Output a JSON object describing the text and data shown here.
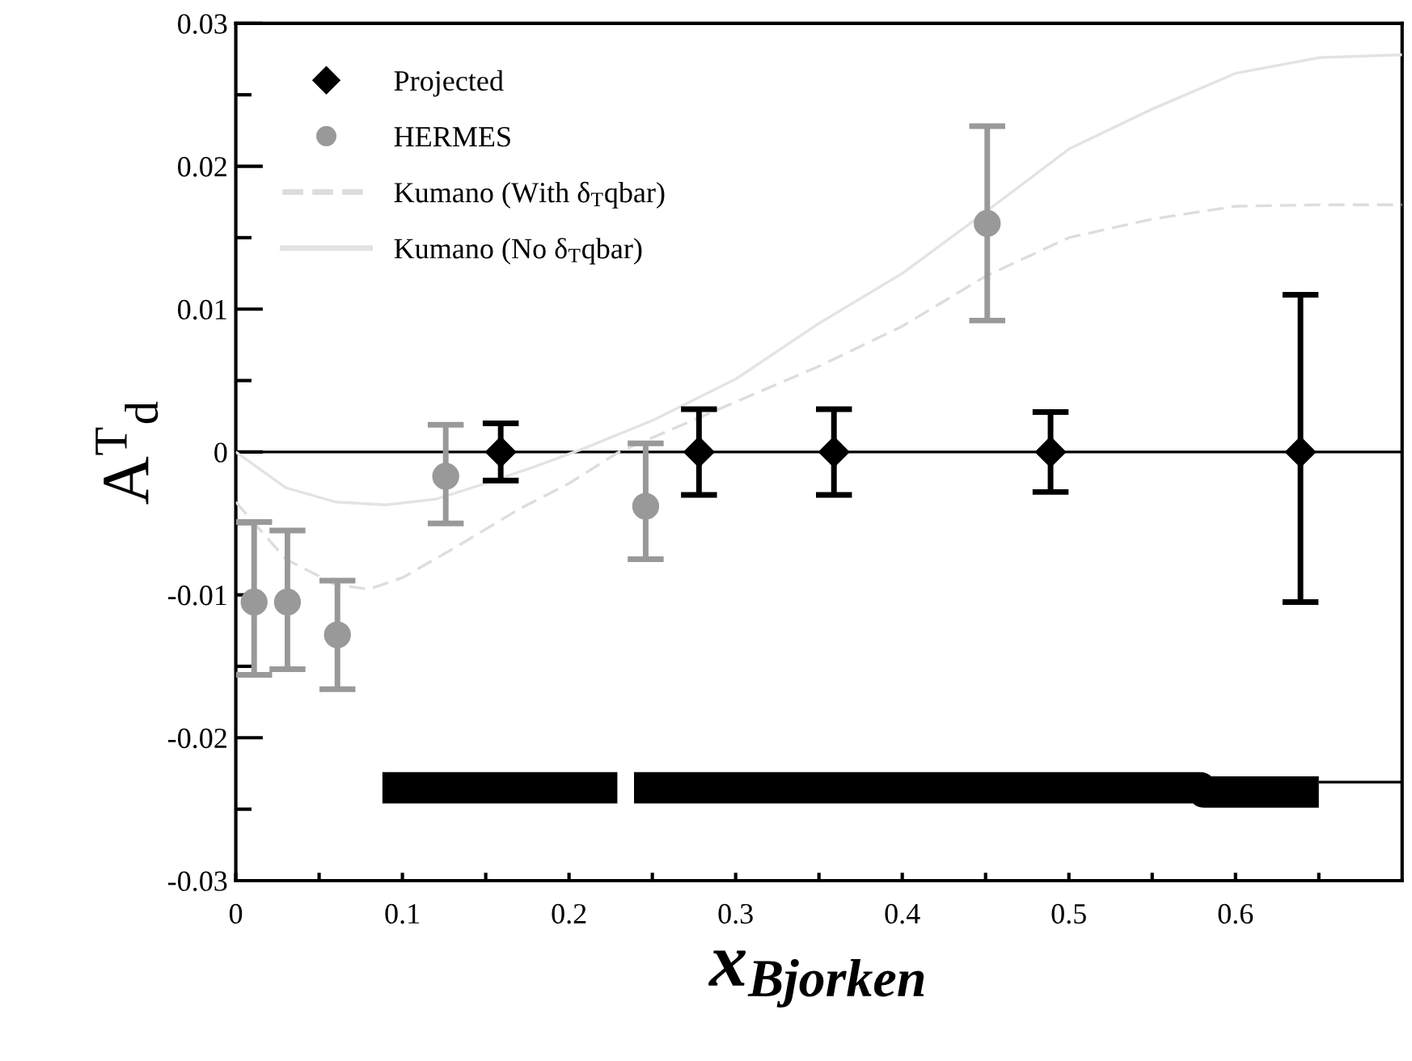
{
  "chart_data": {
    "type": "scatter",
    "xlabel": "x$_{Bjorken}$",
    "ylabel": "A$^{T}$$_{d}$",
    "xlim": [
      0,
      0.7
    ],
    "ylim": [
      -0.03,
      0.03
    ],
    "xticks": [
      0,
      {
        "value": 0.05,
        "label": null
      },
      0.1,
      {
        "value": 0.15,
        "label": null
      },
      0.2,
      {
        "value": 0.25,
        "label": null
      },
      0.3,
      {
        "value": 0.35,
        "label": null
      },
      0.4,
      {
        "value": 0.45,
        "label": null
      },
      0.5,
      {
        "value": 0.55,
        "label": null
      },
      0.6,
      {
        "value": 0.65,
        "label": null
      }
    ],
    "yticks": [
      -0.03,
      {
        "value": -0.025,
        "label": null
      },
      -0.02,
      {
        "value": -0.015,
        "label": null
      },
      -0.01,
      {
        "value": -0.005,
        "label": null
      },
      0,
      {
        "value": 0.005,
        "label": null
      },
      0.01,
      {
        "value": 0.015,
        "label": null
      },
      0.02,
      {
        "value": 0.025,
        "label": null
      },
      0.03
    ],
    "grid": false,
    "legend": "top left",
    "ref_lines": [
      {
        "axis": "y",
        "value": 0,
        "color": "#000000"
      }
    ],
    "series": [
      {
        "name": "Projected",
        "marker": "diamond",
        "color": "#000000",
        "x": [
          0.159,
          0.278,
          0.359,
          0.489,
          0.639
        ],
        "values": [
          0,
          0,
          0,
          0,
          0
        ],
        "errors": [
          0.002,
          0.003,
          0.003,
          0.0028,
          [
            -0.0105,
            0.011
          ]
        ]
      },
      {
        "name": "HERMES",
        "marker": "circle",
        "color": "#999999",
        "x": [
          0.011,
          0.031,
          0.061,
          0.126,
          0.246,
          0.451
        ],
        "values": [
          -0.0105,
          -0.0105,
          -0.0128,
          -0.0017,
          -0.0038,
          0.016
        ],
        "errors": [
          [
            -0.0156,
            -0.0049
          ],
          [
            -0.0152,
            -0.0055
          ],
          [
            -0.0166,
            -0.009
          ],
          [
            -0.005,
            0.0019
          ],
          [
            -0.0075,
            0.0006
          ],
          [
            0.0092,
            0.0228
          ]
        ]
      },
      {
        "name": "Kumano (With δ$_{T}$qbar)",
        "type": "line",
        "line_style": "dashed",
        "color": "#dddddd",
        "x": [
          0,
          0.03,
          0.06,
          0.08,
          0.1,
          0.13,
          0.17,
          0.2,
          0.23,
          0.3,
          0.35,
          0.4,
          0.45,
          0.5,
          0.55,
          0.6,
          0.65,
          0.7
        ],
        "values": [
          -0.0035,
          -0.0075,
          -0.0093,
          -0.0096,
          -0.0088,
          -0.0068,
          -0.004,
          -0.0022,
          0,
          0.0035,
          0.006,
          0.0088,
          0.0123,
          0.015,
          0.0163,
          0.0172,
          0.0173,
          0.0173
        ]
      },
      {
        "name": "Kumano (No δ$_{T}$qbar)",
        "type": "line",
        "line_style": "solid",
        "color": "#e3e3e3",
        "x": [
          0,
          0.03,
          0.06,
          0.09,
          0.12,
          0.15,
          0.18,
          0.21,
          0.25,
          0.3,
          0.35,
          0.4,
          0.45,
          0.5,
          0.55,
          0.6,
          0.65,
          0.7
        ],
        "values": [
          0,
          -0.0025,
          -0.0035,
          -0.0037,
          -0.0033,
          -0.0022,
          -0.001,
          0.0003,
          0.0022,
          0.0051,
          0.009,
          0.0125,
          0.0168,
          0.0212,
          0.024,
          0.0265,
          0.0276,
          0.0278
        ]
      },
      {
        "type": "line",
        "color": "#000000",
        "x": [
          0.088,
          0.229,
          0.234,
          0.239,
          0.579,
          0.581,
          0.65
        ],
        "values": [
          -0.0235,
          -0.0235,
          null,
          -0.0235,
          -0.0235,
          -0.0238,
          -0.0238
        ]
      },
      {
        "type": "line",
        "color": "#000000",
        "x": [
          0.65,
          0.7
        ],
        "values": [
          -0.0231,
          -0.0231
        ]
      }
    ]
  }
}
